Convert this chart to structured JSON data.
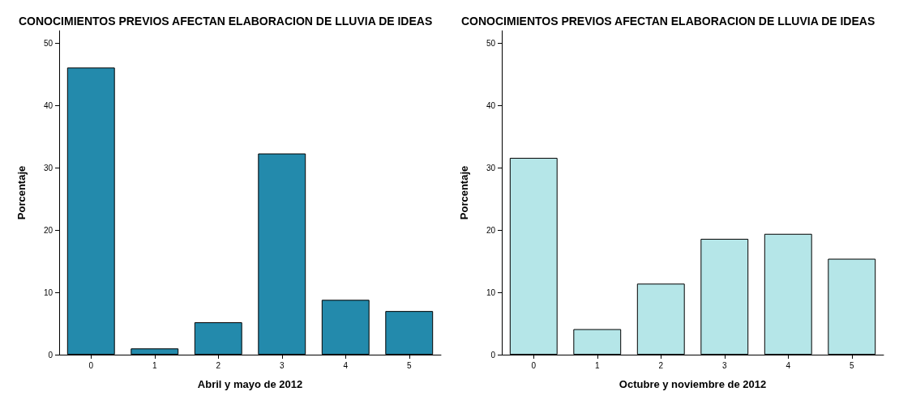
{
  "chart_data": [
    {
      "type": "bar",
      "title": "CONOCIMIENTOS PREVIOS AFECTAN ELABORACION DE LLUVIA DE IDEAS",
      "xlabel": "Abril y mayo de 2012",
      "ylabel": "Porcentaje",
      "categories": [
        "0",
        "1",
        "2",
        "3",
        "4",
        "5"
      ],
      "values": [
        46.1,
        1.0,
        5.2,
        32.3,
        8.8,
        7.0
      ],
      "color": "#238aac",
      "ylim": [
        0,
        52
      ],
      "yticks": [
        0,
        10,
        20,
        30,
        40,
        50
      ],
      "grid": false
    },
    {
      "type": "bar",
      "title": "CONOCIMIENTOS PREVIOS AFECTAN ELABORACION DE LLUVIA DE IDEAS",
      "xlabel": "Octubre y noviembre de 2012",
      "ylabel": "Porcentaje",
      "categories": [
        "0",
        "1",
        "2",
        "3",
        "4",
        "5"
      ],
      "values": [
        31.6,
        4.1,
        11.4,
        18.6,
        19.4,
        15.4
      ],
      "color": "#b5e6e8",
      "ylim": [
        0,
        52
      ],
      "yticks": [
        0,
        10,
        20,
        30,
        40,
        50
      ],
      "grid": false
    }
  ]
}
